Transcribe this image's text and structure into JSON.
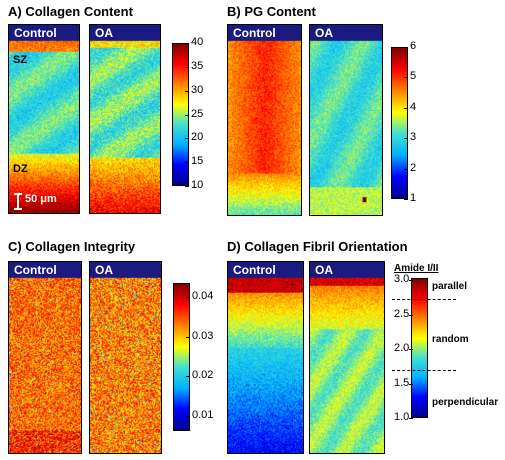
{
  "panels": {
    "a": {
      "title": "A) Collagen Content",
      "control_label": "Control",
      "oa_label": "OA",
      "sz_label": "SZ",
      "dz_label": "DZ",
      "scalebar_label": "50 μm",
      "colorbar_ticks": [
        "40",
        "35",
        "30",
        "25",
        "20",
        "15",
        "10"
      ]
    },
    "b": {
      "title": "B) PG Content",
      "control_label": "Control",
      "oa_label": "OA",
      "colorbar_ticks": [
        "6",
        "5",
        "4",
        "3",
        "2",
        "1"
      ]
    },
    "c": {
      "title": "C) Collagen Integrity",
      "control_label": "Control",
      "oa_label": "OA",
      "colorbar_ticks": [
        "0.04",
        "0.03",
        "0.02",
        "0.01"
      ]
    },
    "d": {
      "title": "D) Collagen Fibril Orientation",
      "control_label": "Control",
      "oa_label": "OA",
      "colorbar_title": "Amide I/II",
      "colorbar_ticks": [
        "3.0",
        "2.5",
        "2.0",
        "1.5",
        "1.0"
      ],
      "orientation_parallel": "parallel",
      "orientation_random": "random",
      "orientation_perpendicular": "perpendicular"
    }
  },
  "colors": {
    "header_bar": "#1a1a80",
    "colormap": [
      "#00008f",
      "#0000ff",
      "#00b0ff",
      "#40e0d0",
      "#ffff00",
      "#ff8000",
      "#ff0000",
      "#800000"
    ]
  }
}
